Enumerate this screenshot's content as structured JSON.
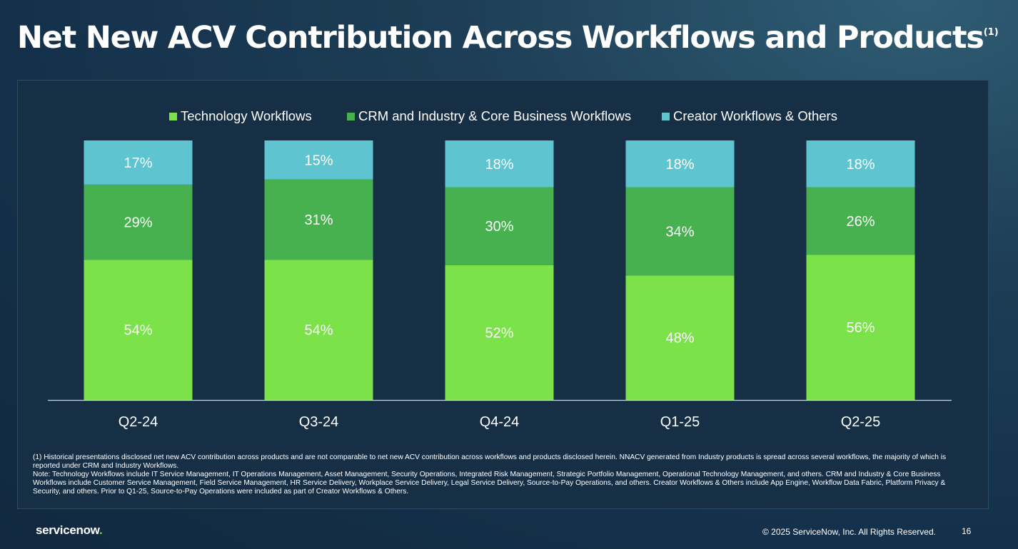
{
  "title": "Net New ACV Contribution Across Workflows and Products",
  "title_footnote_marker": "(1)",
  "colors": {
    "technology": "#7be24a",
    "crm": "#46b14e",
    "creator": "#5ec4d0",
    "background": "#14304a",
    "panel": "#172f45"
  },
  "chart_data": {
    "type": "bar",
    "stacked": true,
    "categories": [
      "Q2-24",
      "Q3-24",
      "Q4-24",
      "Q1-25",
      "Q2-25"
    ],
    "series": [
      {
        "name": "Technology Workflows",
        "values": [
          54,
          54,
          52,
          48,
          56
        ],
        "labels": [
          "54%",
          "54%",
          "52%",
          "48%",
          "56%"
        ],
        "color": "#7be24a"
      },
      {
        "name": "CRM and Industry & Core Business Workflows",
        "values": [
          29,
          31,
          30,
          34,
          26
        ],
        "labels": [
          "29%",
          "31%",
          "30%",
          "34%",
          "26%"
        ],
        "color": "#46b14e"
      },
      {
        "name": "Creator Workflows & Others",
        "values": [
          17,
          15,
          18,
          18,
          18
        ],
        "labels": [
          "17%",
          "15%",
          "18%",
          "18%",
          "18%"
        ],
        "color": "#5ec4d0"
      }
    ],
    "ylim": [
      0,
      100
    ],
    "legend_position": "top",
    "grid": false
  },
  "footnotes": [
    "(1) Historical presentations disclosed net new ACV contribution across products and are not comparable to net new ACV contribution across workflows and products disclosed herein. NNACV generated from Industry products is spread across several workflows, the majority of which is reported under CRM and Industry Workflows.",
    "Note: Technology Workflows include IT Service Management, IT Operations Management, Asset Management, Security Operations, Integrated Risk Management, Strategic Portfolio Management, Operational Technology Management, and others. CRM and Industry & Core Business Workflows include Customer Service Management, Field Service Management, HR Service Delivery, Workplace Service Delivery, Legal Service Delivery, Source-to-Pay Operations, and others. Creator Workflows & Others include App Engine, Workflow Data Fabric, Platform Privacy & Security, and others. Prior to Q1-25, Source-to-Pay Operations were included as part of Creator Workflows & Others."
  ],
  "footer": {
    "logo_text": "servicenow",
    "logo_dot": ".",
    "copyright": "© 2025 ServiceNow, Inc. All Rights Reserved.",
    "page_number": "16"
  }
}
